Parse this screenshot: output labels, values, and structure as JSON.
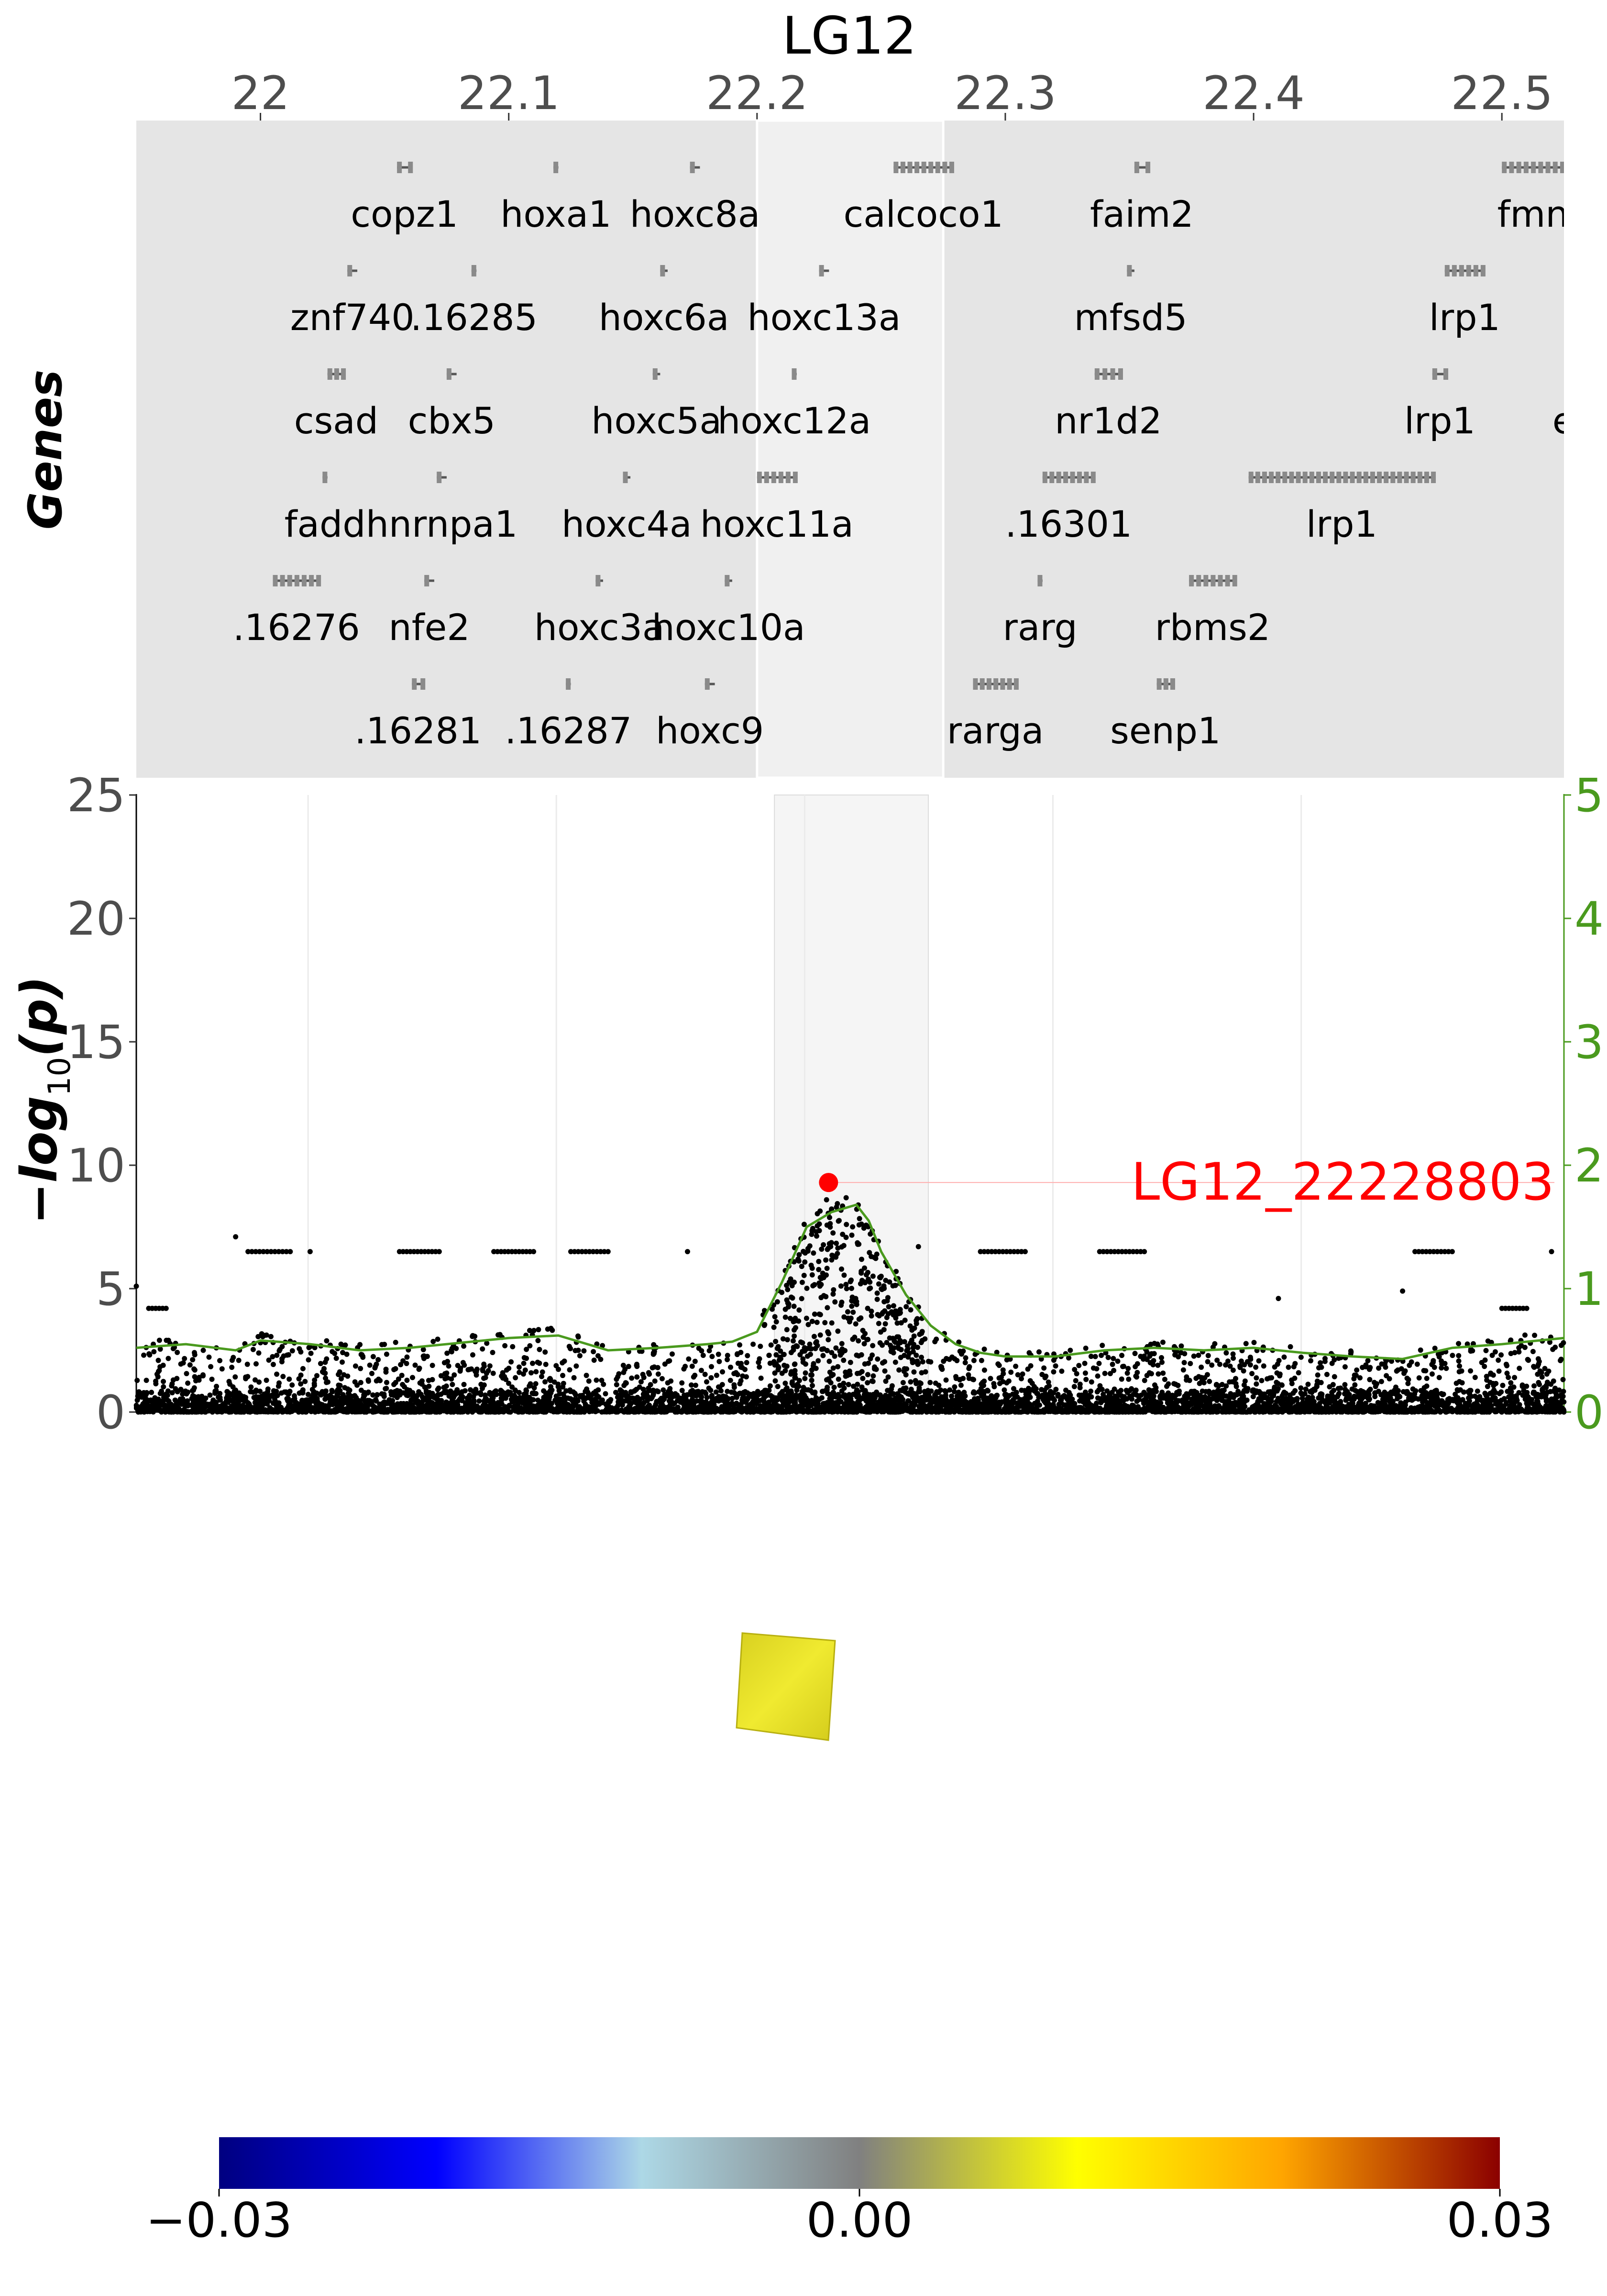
{
  "chart_data": [
    {
      "type": "gene-track",
      "axis_title": "LG12",
      "x_ticks": [
        "22",
        "22.1",
        "22.2",
        "22.3",
        "22.4",
        "22.5"
      ],
      "x_tick_values": [
        22.0,
        22.1,
        22.2,
        22.3,
        22.4,
        22.5
      ],
      "xlim": [
        21.95,
        22.525
      ],
      "ylabel": "Genes",
      "highlight_region": [
        22.2,
        22.275
      ],
      "genes": [
        {
          "name": "copz1",
          "row": 0,
          "start": 22.055,
          "end": 22.061
        },
        {
          "name": "hoxa1",
          "row": 0,
          "start": 22.118,
          "end": 22.12
        },
        {
          "name": "hoxc8a",
          "row": 0,
          "start": 22.173,
          "end": 22.177
        },
        {
          "name": "calcoco1",
          "row": 0,
          "start": 22.255,
          "end": 22.279
        },
        {
          "name": "faim2",
          "row": 0,
          "start": 22.352,
          "end": 22.358
        },
        {
          "name": "fmn",
          "row": 0,
          "start": 22.5,
          "end": 22.525
        },
        {
          "name": "znf740",
          "row": 1,
          "start": 22.035,
          "end": 22.039
        },
        {
          "name": ".16285",
          "row": 1,
          "start": 22.085,
          "end": 22.087
        },
        {
          "name": "hoxc6a",
          "row": 1,
          "start": 22.161,
          "end": 22.164
        },
        {
          "name": "hoxc13a",
          "row": 1,
          "start": 22.225,
          "end": 22.229
        },
        {
          "name": "mfsd5",
          "row": 1,
          "start": 22.349,
          "end": 22.352
        },
        {
          "name": "lrp1",
          "row": 1,
          "start": 22.477,
          "end": 22.493
        },
        {
          "name": "csad",
          "row": 2,
          "start": 22.027,
          "end": 22.034
        },
        {
          "name": "cbx5",
          "row": 2,
          "start": 22.075,
          "end": 22.079
        },
        {
          "name": "hoxc5a",
          "row": 2,
          "start": 22.158,
          "end": 22.161
        },
        {
          "name": "hoxc12a",
          "row": 2,
          "start": 22.214,
          "end": 22.216
        },
        {
          "name": "nr1d2",
          "row": 2,
          "start": 22.336,
          "end": 22.347
        },
        {
          "name": "lrp1",
          "row": 2,
          "start": 22.472,
          "end": 22.478
        },
        {
          "name": "erb",
          "row": 2,
          "start": 22.53,
          "end": 22.535
        },
        {
          "name": "fadd",
          "row": 3,
          "start": 22.025,
          "end": 22.027
        },
        {
          "name": "hnrnpa1",
          "row": 3,
          "start": 22.071,
          "end": 22.075
        },
        {
          "name": "hoxc4a",
          "row": 3,
          "start": 22.146,
          "end": 22.149
        },
        {
          "name": "hoxc11a",
          "row": 3,
          "start": 22.2,
          "end": 22.216
        },
        {
          "name": ".16301",
          "row": 3,
          "start": 22.315,
          "end": 22.336
        },
        {
          "name": "lrp1",
          "row": 3,
          "start": 22.398,
          "end": 22.473
        },
        {
          "name": ".16276",
          "row": 4,
          "start": 22.005,
          "end": 22.024
        },
        {
          "name": "nfe2",
          "row": 4,
          "start": 22.066,
          "end": 22.07
        },
        {
          "name": "hoxc3a",
          "row": 4,
          "start": 22.135,
          "end": 22.138
        },
        {
          "name": "hoxc10a",
          "row": 4,
          "start": 22.187,
          "end": 22.19
        },
        {
          "name": "rarg",
          "row": 4,
          "start": 22.313,
          "end": 22.315
        },
        {
          "name": "rbms2",
          "row": 4,
          "start": 22.374,
          "end": 22.393
        },
        {
          "name": ".16281",
          "row": 5,
          "start": 22.061,
          "end": 22.066
        },
        {
          "name": ".16287",
          "row": 5,
          "start": 22.123,
          "end": 22.125
        },
        {
          "name": "hoxc9",
          "row": 5,
          "start": 22.179,
          "end": 22.183
        },
        {
          "name": "rarga",
          "row": 5,
          "start": 22.287,
          "end": 22.305
        },
        {
          "name": "senp1",
          "row": 5,
          "start": 22.361,
          "end": 22.368
        }
      ]
    },
    {
      "type": "scatter",
      "ylabel": "−log₁₀(p)",
      "ylim": [
        0,
        25
      ],
      "y_ticks": [
        "0",
        "5",
        "10",
        "15",
        "20",
        "25"
      ],
      "y2lim": [
        0,
        5
      ],
      "y2_ticks": [
        "0",
        "1",
        "2",
        "3",
        "4",
        "5"
      ],
      "xlim": [
        21.95,
        22.525
      ],
      "highlight_region": [
        22.207,
        22.269
      ],
      "grid": "vertical",
      "lead_snp": {
        "label": "LG12_22228803",
        "x": 22.2288,
        "y": 9.3
      },
      "colors": {
        "points": "#000000",
        "lead": "#ff0000",
        "line": "#4a9a1e",
        "right_axis": "#4a9a1e"
      },
      "smooth_line": {
        "x": [
          21.95,
          21.97,
          21.99,
          22.0,
          22.02,
          22.04,
          22.06,
          22.08,
          22.1,
          22.12,
          22.14,
          22.16,
          22.18,
          22.19,
          22.2,
          22.21,
          22.22,
          22.23,
          22.235,
          22.24,
          22.245,
          22.25,
          22.26,
          22.27,
          22.28,
          22.29,
          22.3,
          22.32,
          22.34,
          22.36,
          22.38,
          22.4,
          22.42,
          22.44,
          22.46,
          22.48,
          22.5,
          22.525
        ],
        "y": [
          0.52,
          0.55,
          0.5,
          0.58,
          0.55,
          0.5,
          0.52,
          0.56,
          0.6,
          0.62,
          0.5,
          0.52,
          0.55,
          0.57,
          0.65,
          1.05,
          1.5,
          1.62,
          1.65,
          1.68,
          1.55,
          1.3,
          0.95,
          0.7,
          0.55,
          0.48,
          0.45,
          0.45,
          0.5,
          0.52,
          0.5,
          0.52,
          0.48,
          0.45,
          0.43,
          0.52,
          0.55,
          0.6
        ]
      },
      "peaks": [
        {
          "x": 22.228,
          "y": 8.6
        },
        {
          "x": 22.232,
          "y": 8.3
        },
        {
          "x": 22.236,
          "y": 7.6
        },
        {
          "x": 22.222,
          "y": 7.2
        },
        {
          "x": 22.241,
          "y": 6.8
        },
        {
          "x": 22.226,
          "y": 6.6
        },
        {
          "x": 22.246,
          "y": 6.3
        },
        {
          "x": 22.265,
          "y": 6.7
        },
        {
          "x": 22.218,
          "y": 5.9
        },
        {
          "x": 22.25,
          "y": 5.5
        },
        {
          "x": 21.99,
          "y": 7.1
        },
        {
          "x": 21.95,
          "y": 5.1
        },
        {
          "x": 22.46,
          "y": 4.9
        },
        {
          "x": 22.41,
          "y": 4.6
        }
      ],
      "bands": [
        {
          "x": [
            21.995,
            22.012
          ],
          "y": 6.5
        },
        {
          "x": 22.02,
          "y": 6.5
        },
        {
          "x": [
            22.056,
            22.072
          ],
          "y": 6.5
        },
        {
          "x": [
            22.094,
            22.11
          ],
          "y": 6.5
        },
        {
          "x": [
            22.125,
            22.14
          ],
          "y": 6.5
        },
        {
          "x": 22.172,
          "y": 6.5
        },
        {
          "x": [
            22.29,
            22.308
          ],
          "y": 6.5
        },
        {
          "x": [
            22.338,
            22.356
          ],
          "y": 6.5
        },
        {
          "x": [
            22.465,
            22.48
          ],
          "y": 6.5
        },
        {
          "x": 22.52,
          "y": 6.5
        },
        {
          "x": [
            21.955,
            21.962
          ],
          "y": 4.2
        },
        {
          "x": [
            22.5,
            22.51
          ],
          "y": 4.2
        }
      ]
    },
    {
      "type": "colorbar",
      "ticks": [
        "−0.03",
        "0.00",
        "0.03"
      ],
      "tick_values": [
        -0.03,
        0.0,
        0.03
      ],
      "stops": [
        "#000080",
        "#0000ff",
        "#add8e6",
        "#808080",
        "#ffff00",
        "#ffa500",
        "#8b0000"
      ]
    }
  ],
  "inset_image": {
    "color": "#e8e020",
    "alt": ""
  }
}
